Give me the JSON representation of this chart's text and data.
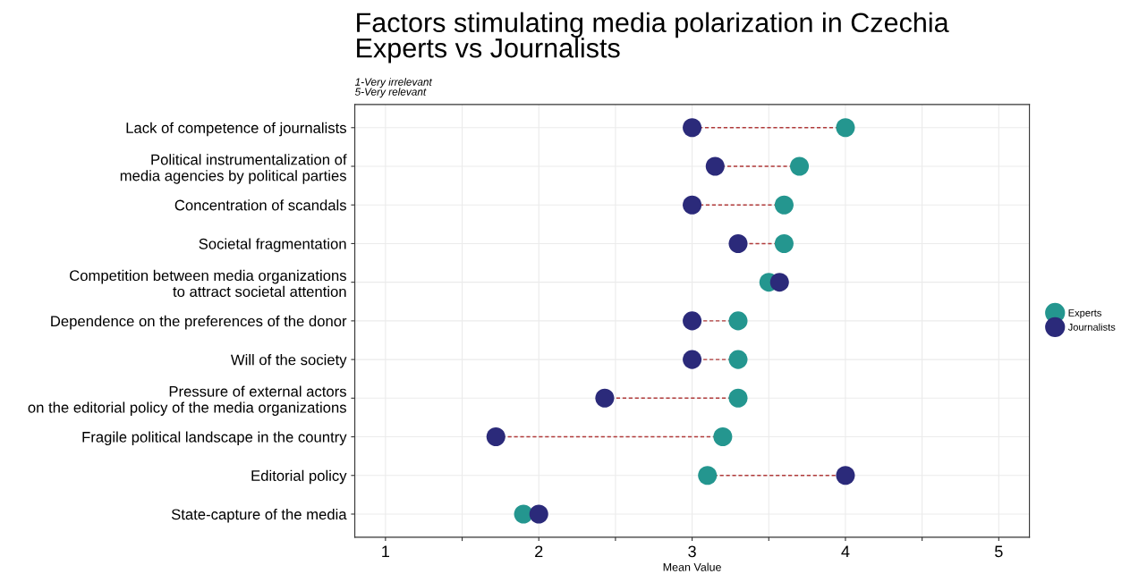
{
  "chart_data": {
    "type": "scatter",
    "orientation": "horizontal",
    "title": "Factors stimulating media polarization in Czechia\nExperts vs Journalists",
    "subtitle": "1-Very irrelevant\n5-Very relevant",
    "xlabel": "Mean Value",
    "categories": [
      "Lack of competence of journalists",
      "Political instrumentalization of\nmedia agencies by political parties",
      "Concentration of scandals",
      "Societal fragmentation",
      "Competition between media organizations\nto attract societal attention",
      "Dependence on the preferences of the donor",
      "Will of the society",
      "Pressure of external actors\non the editorial policy of the media organizations",
      "Fragile political landscape in the country",
      "Editorial policy",
      "State-capture of the media"
    ],
    "series": [
      {
        "name": "Experts",
        "color": "#24968f",
        "values": [
          4.0,
          3.7,
          3.6,
          3.6,
          3.5,
          3.3,
          3.3,
          3.3,
          3.2,
          3.1,
          1.9
        ]
      },
      {
        "name": "Journalists",
        "color": "#2b2a7a",
        "values": [
          3.0,
          3.15,
          3.0,
          3.3,
          3.57,
          3.0,
          3.0,
          2.43,
          1.72,
          4.0,
          2.0
        ]
      }
    ],
    "xlim": [
      0.8,
      5.2
    ],
    "xticks": [
      1,
      {
        "value": 1.5,
        "label": null
      },
      2,
      {
        "value": 2.5,
        "label": null
      },
      3,
      {
        "value": 3.5,
        "label": null
      },
      4,
      {
        "value": 4.5,
        "label": null
      },
      5
    ],
    "grid": true,
    "legend": "right",
    "marker": "circle"
  }
}
